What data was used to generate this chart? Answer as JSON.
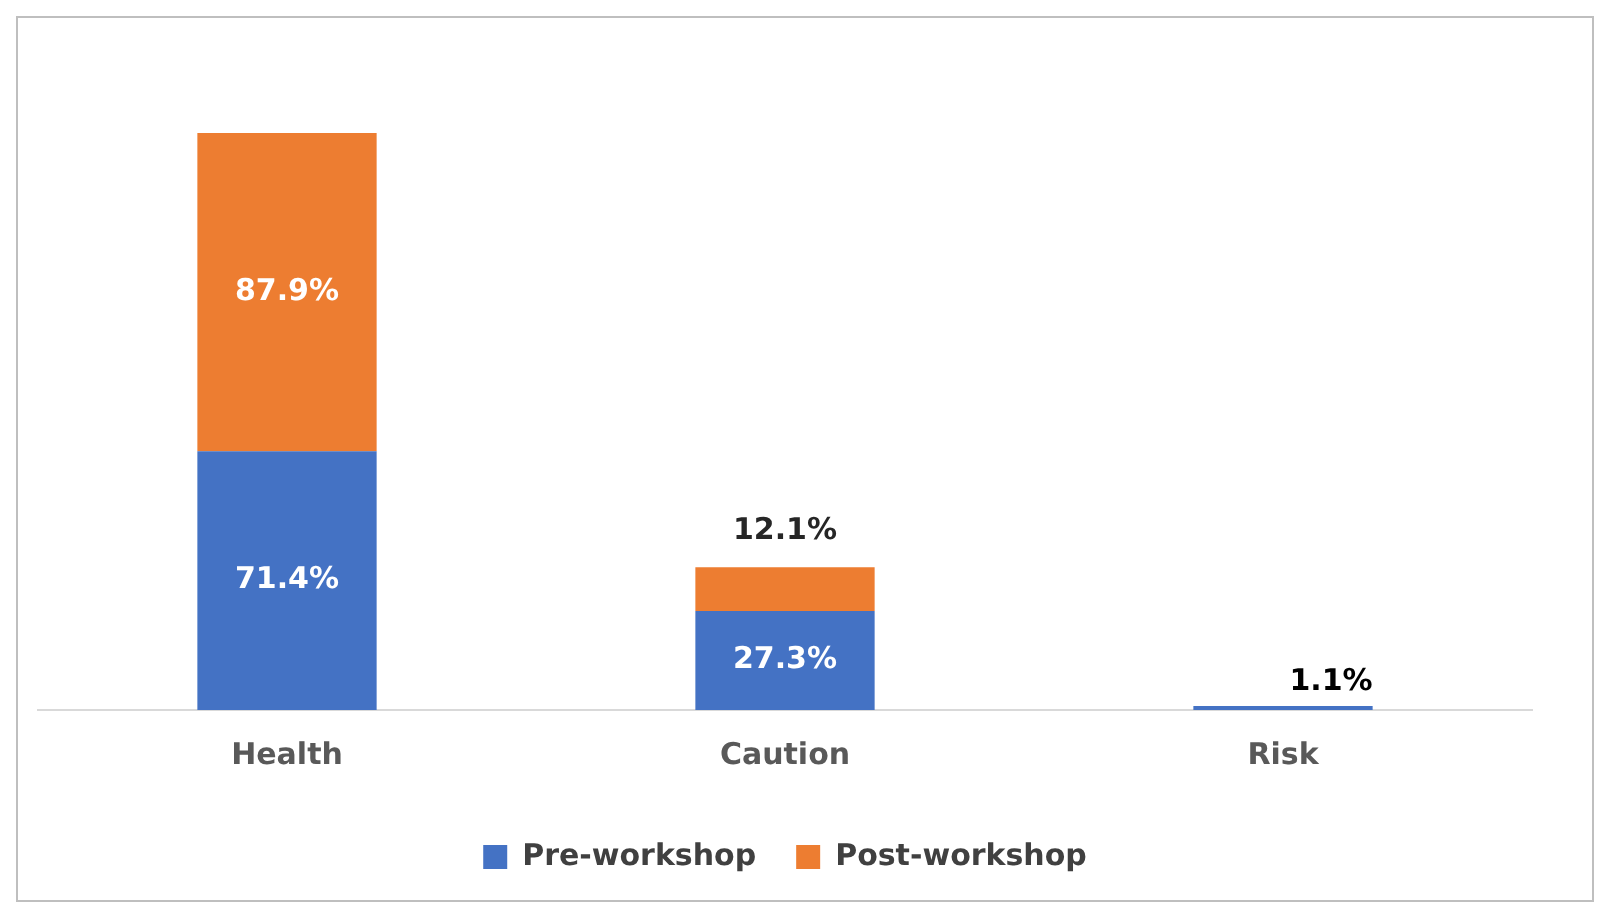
{
  "chart_data": {
    "type": "bar",
    "stacked": true,
    "categories": [
      "Health",
      "Caution",
      "Risk"
    ],
    "series": [
      {
        "name": "Pre-workshop",
        "color": "#4472c4",
        "values": [
          71.4,
          27.3,
          1.1
        ],
        "value_labels": [
          "71.4%",
          "27.3%",
          "1.1%"
        ]
      },
      {
        "name": "Post-workshop",
        "color": "#ed7d31",
        "values": [
          87.9,
          12.1,
          0
        ],
        "value_labels": [
          "87.9%",
          "12.1%",
          null
        ]
      }
    ],
    "legend": "bottom",
    "grid": false
  }
}
